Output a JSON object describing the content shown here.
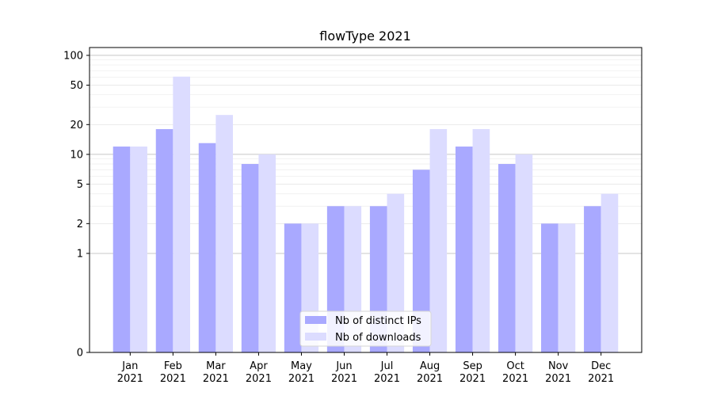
{
  "chart_data": {
    "type": "bar",
    "title": "flowType 2021",
    "xlabel": "",
    "ylabel": "",
    "yscale": "symlog",
    "ylim": [
      0,
      120
    ],
    "yticks": [
      {
        "value": 0,
        "label": "0"
      },
      {
        "value": 1,
        "label": "1"
      },
      {
        "value": 2,
        "label": "2"
      },
      {
        "value": 5,
        "label": "5"
      },
      {
        "value": 10,
        "label": "10"
      },
      {
        "value": 20,
        "label": "20"
      },
      {
        "value": 50,
        "label": "50"
      },
      {
        "value": 100,
        "label": "100"
      }
    ],
    "categories": [
      {
        "month": "Jan",
        "year": "2021"
      },
      {
        "month": "Feb",
        "year": "2021"
      },
      {
        "month": "Mar",
        "year": "2021"
      },
      {
        "month": "Apr",
        "year": "2021"
      },
      {
        "month": "May",
        "year": "2021"
      },
      {
        "month": "Jun",
        "year": "2021"
      },
      {
        "month": "Jul",
        "year": "2021"
      },
      {
        "month": "Aug",
        "year": "2021"
      },
      {
        "month": "Sep",
        "year": "2021"
      },
      {
        "month": "Oct",
        "year": "2021"
      },
      {
        "month": "Nov",
        "year": "2021"
      },
      {
        "month": "Dec",
        "year": "2021"
      }
    ],
    "series": [
      {
        "name": "Nb of distinct IPs",
        "color": "#a9a9ff",
        "values": [
          12,
          18,
          13,
          8,
          2,
          3,
          3,
          7,
          12,
          8,
          2,
          3
        ]
      },
      {
        "name": "Nb of downloads",
        "color": "#dcdcff",
        "values": [
          12,
          61,
          25,
          10,
          2,
          3,
          4,
          18,
          18,
          10,
          2,
          4
        ]
      }
    ],
    "grid": true,
    "legend_position": "bottom-center"
  }
}
